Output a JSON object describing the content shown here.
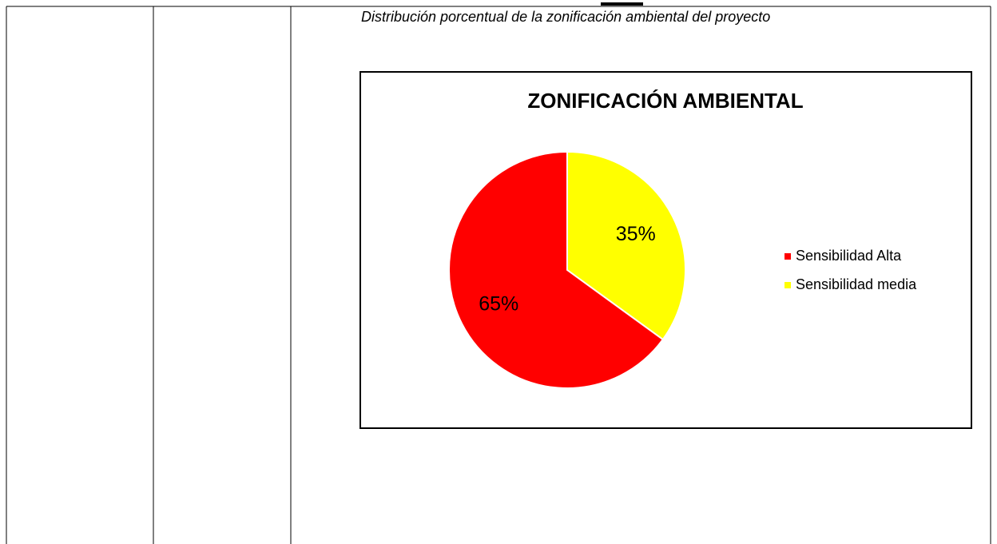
{
  "caption": "Distribución porcentual de la zonificación ambiental del proyecto",
  "chart_data": {
    "type": "pie",
    "title": "ZONIFICACIÓN AMBIENTAL",
    "categories": [
      "Sensibilidad media",
      "Sensibilidad Alta"
    ],
    "values": [
      35,
      65
    ],
    "value_labels": [
      "35%",
      "65%"
    ],
    "colors": [
      "#ffff00",
      "#ff0000"
    ],
    "legend": "right",
    "legend_order": [
      1,
      0
    ]
  }
}
